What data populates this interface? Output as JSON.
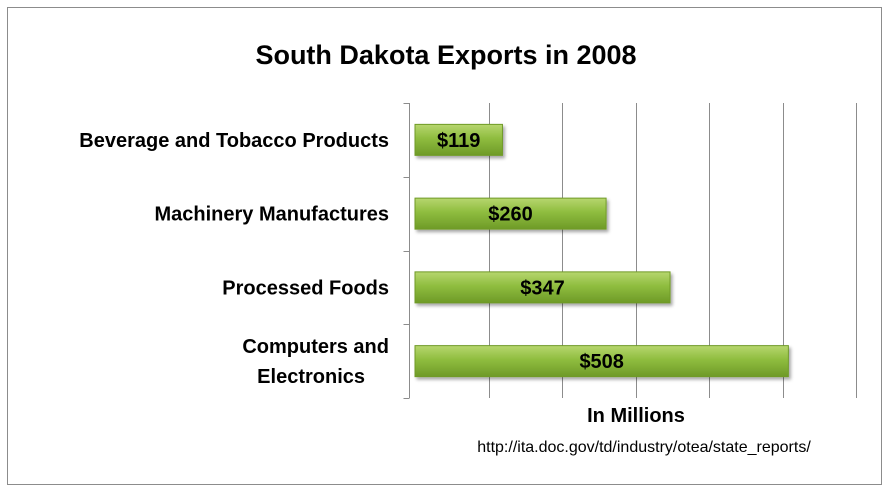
{
  "chart_data": {
    "type": "bar",
    "orientation": "horizontal",
    "title": "South Dakota Exports in 2008",
    "xlabel": "In Millions",
    "ylabel": "",
    "source": "http://ita.doc.gov/td/industry/otea/state_reports/",
    "categories": [
      [
        "Beverage and Tobacco Products"
      ],
      [
        "Machinery Manufactures"
      ],
      [
        "Processed Foods"
      ],
      [
        "Computers and",
        "Electronics"
      ]
    ],
    "values": [
      119,
      260,
      347,
      508
    ],
    "data_labels": [
      "$119",
      "$260",
      "$347",
      "$508"
    ],
    "xlim": [
      0,
      600
    ],
    "x_gridline_step": 100,
    "grid": true,
    "legend": "none",
    "bar_color": "#8bbb3a",
    "bar_edge_color": "#6f9a26"
  }
}
